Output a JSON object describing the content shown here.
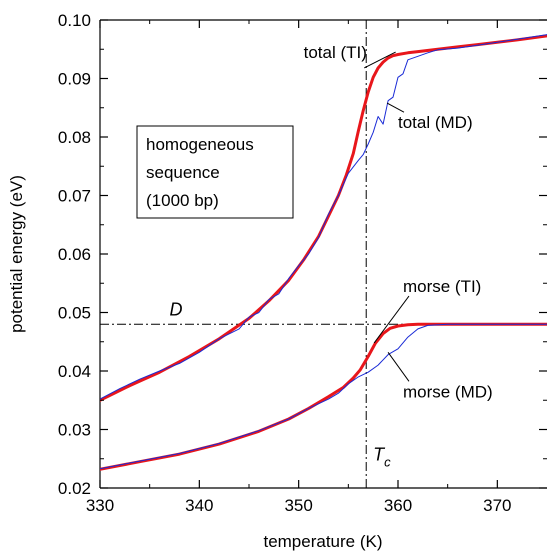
{
  "chart_data": {
    "type": "line",
    "title": "",
    "xlabel": "temperature  (K)",
    "ylabel": "potential energy  (eV)",
    "xlim": [
      330,
      375
    ],
    "ylim": [
      0.02,
      0.1
    ],
    "xticks": [
      330,
      340,
      350,
      360,
      370
    ],
    "xtick_labels": [
      "330",
      "340",
      "350",
      "360",
      "370"
    ],
    "yticks": [
      0.02,
      0.03,
      0.04,
      0.05,
      0.06,
      0.07,
      0.08,
      0.09,
      0.1
    ],
    "ytick_labels": [
      "0.02",
      "0.03",
      "0.04",
      "0.05",
      "0.06",
      "0.07",
      "0.08",
      "0.09",
      "0.10"
    ],
    "grid": false,
    "reference_lines": [
      {
        "orientation": "horizontal",
        "value": 0.048,
        "style": "dash-dot",
        "label": "D"
      },
      {
        "orientation": "vertical",
        "value": 356.8,
        "style": "dash-dot",
        "label": "T",
        "label_subscript": "c"
      }
    ],
    "series": [
      {
        "name": "total (TI)",
        "color": "#e8161b",
        "style": "solid-thick",
        "x": [
          330,
          333,
          336,
          339,
          342,
          345,
          347,
          349,
          350.5,
          352,
          353,
          354,
          354.8,
          355.5,
          356,
          356.5,
          357,
          357.5,
          358,
          358.5,
          359,
          359.5,
          360,
          361,
          362,
          364,
          366,
          368,
          370,
          372,
          375
        ],
        "y": [
          0.035,
          0.0375,
          0.0398,
          0.0425,
          0.0455,
          0.049,
          0.052,
          0.0555,
          0.059,
          0.063,
          0.0665,
          0.07,
          0.0735,
          0.0772,
          0.081,
          0.0845,
          0.0877,
          0.0902,
          0.0918,
          0.0928,
          0.0935,
          0.0939,
          0.0941,
          0.0944,
          0.0946,
          0.095,
          0.0954,
          0.0958,
          0.0962,
          0.0966,
          0.0973
        ]
      },
      {
        "name": "total (MD)",
        "color": "#1a2bd6",
        "style": "solid-thin",
        "x": [
          330,
          332,
          334,
          336,
          338,
          340,
          342,
          344,
          345,
          346,
          347,
          348,
          349,
          350,
          351,
          352,
          353,
          354,
          355,
          356,
          356.5,
          357,
          357.5,
          358,
          358.5,
          359,
          359.5,
          360,
          360.5,
          361,
          362,
          363,
          364,
          366,
          368,
          370,
          372,
          375
        ],
        "y": [
          0.0352,
          0.037,
          0.0386,
          0.04,
          0.0413,
          0.0432,
          0.0455,
          0.0472,
          0.0492,
          0.05,
          0.0522,
          0.0532,
          0.0558,
          0.058,
          0.06,
          0.0628,
          0.0668,
          0.07,
          0.0738,
          0.076,
          0.077,
          0.0788,
          0.0808,
          0.0835,
          0.0822,
          0.0862,
          0.0868,
          0.0902,
          0.0908,
          0.0932,
          0.0938,
          0.0944,
          0.0949,
          0.0952,
          0.0957,
          0.0962,
          0.0967,
          0.0975
        ]
      },
      {
        "name": "morse (TI)",
        "color": "#e8161b",
        "style": "solid-thick",
        "x": [
          330,
          334,
          338,
          342,
          346,
          349,
          351,
          353,
          354.5,
          355.5,
          356.2,
          357,
          357.7,
          358.5,
          359.2,
          360,
          361,
          362,
          365,
          370,
          375
        ],
        "y": [
          0.0232,
          0.0245,
          0.0258,
          0.0275,
          0.0297,
          0.0318,
          0.0336,
          0.0356,
          0.0372,
          0.0388,
          0.0402,
          0.0425,
          0.0447,
          0.0464,
          0.0473,
          0.0477,
          0.0479,
          0.048,
          0.048,
          0.048,
          0.048
        ]
      },
      {
        "name": "morse (MD)",
        "color": "#1a2bd6",
        "style": "solid-thin",
        "x": [
          330,
          334,
          338,
          342,
          346,
          349,
          351,
          353,
          354,
          355,
          356,
          357,
          358,
          359,
          360,
          361,
          362,
          363,
          365,
          370,
          375
        ],
        "y": [
          0.0233,
          0.0246,
          0.0259,
          0.0276,
          0.0298,
          0.0318,
          0.0336,
          0.0352,
          0.0362,
          0.0378,
          0.039,
          0.0398,
          0.041,
          0.0428,
          0.0438,
          0.0458,
          0.0472,
          0.0478,
          0.048,
          0.048,
          0.048
        ]
      }
    ],
    "annotations": [
      {
        "text": "total (TI)",
        "x": 350.5,
        "y": 0.0935,
        "pointer": {
          "x": 356.6,
          "y": 0.0918
        }
      },
      {
        "text": "total (MD)",
        "x": 360.0,
        "y": 0.0815,
        "pointer": {
          "x": 358.9,
          "y": 0.0858
        }
      },
      {
        "text": "morse (TI)",
        "x": 360.5,
        "y": 0.0535,
        "pointer": {
          "x": 357.6,
          "y": 0.0448
        }
      },
      {
        "text": "morse (MD)",
        "x": 360.5,
        "y": 0.0355,
        "pointer": {
          "x": 359.0,
          "y": 0.0432
        }
      },
      {
        "text": "D",
        "x": 337.0,
        "y": 0.0495
      },
      {
        "text": "T",
        "subscript": "c",
        "x": 357.5,
        "y": 0.0247
      }
    ],
    "legend_box": {
      "position": "left-middle",
      "lines": [
        "homogeneous",
        "sequence",
        "(1000 bp)"
      ]
    }
  }
}
